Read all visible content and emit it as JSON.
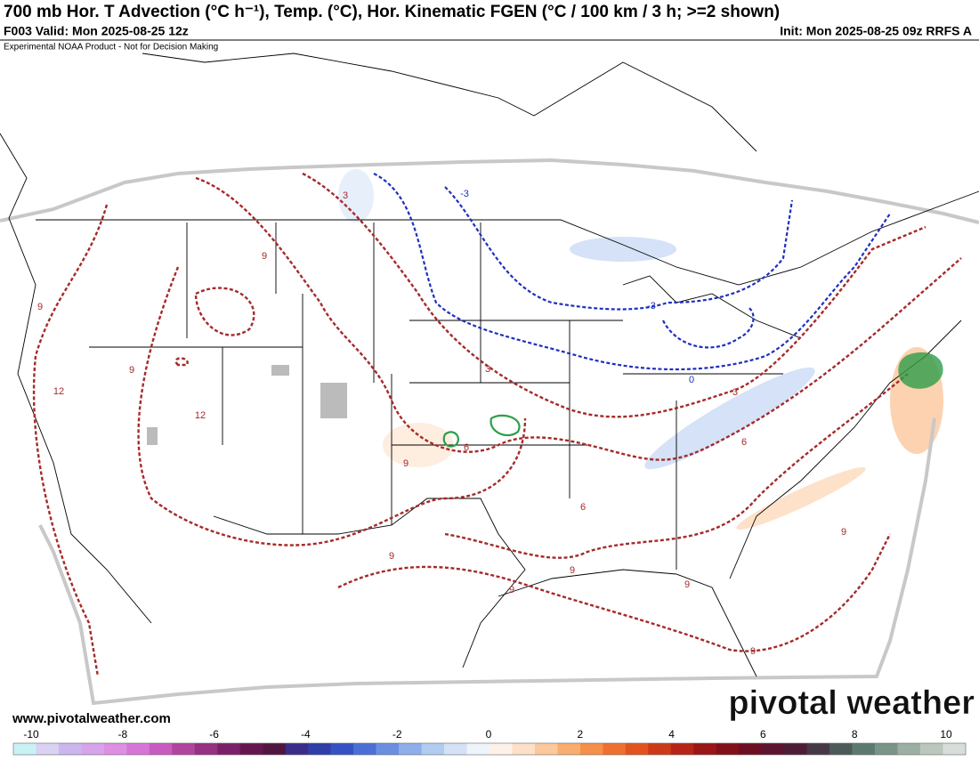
{
  "header": {
    "title": "700 mb Hor. T Advection (°C h⁻¹), Temp. (°C), Hor. Kinematic FGEN (°C / 100 km / 3 h; >=2 shown)",
    "valid": "F003 Valid: Mon 2025-08-25 12z",
    "init": "Init: Mon 2025-08-25 09z RRFS A",
    "disclaimer": "Experimental NOAA Product - Not for Decision Making"
  },
  "map": {
    "contour_labels": [
      {
        "text": "3",
        "kind": "temp"
      },
      {
        "text": "-3",
        "kind": "cold"
      },
      {
        "text": "9",
        "kind": "temp"
      },
      {
        "text": "9",
        "kind": "temp"
      },
      {
        "text": "9",
        "kind": "temp"
      },
      {
        "text": "12",
        "kind": "temp"
      },
      {
        "text": "12",
        "kind": "temp"
      },
      {
        "text": "9",
        "kind": "temp"
      },
      {
        "text": "6",
        "kind": "temp"
      },
      {
        "text": "3",
        "kind": "temp"
      },
      {
        "text": "-3",
        "kind": "cold"
      },
      {
        "text": "0",
        "kind": "cold"
      },
      {
        "text": "3",
        "kind": "temp"
      },
      {
        "text": "6",
        "kind": "temp"
      },
      {
        "text": "6",
        "kind": "temp"
      },
      {
        "text": "9",
        "kind": "temp"
      },
      {
        "text": "9",
        "kind": "temp"
      },
      {
        "text": "9",
        "kind": "temp"
      },
      {
        "text": "9",
        "kind": "temp"
      },
      {
        "text": "9",
        "kind": "temp"
      },
      {
        "text": "9",
        "kind": "temp"
      }
    ]
  },
  "footer": {
    "website": "www.pivotalweather.com",
    "logo": "pivotal weather"
  },
  "colorbar": {
    "ticks": [
      -10,
      -8,
      -6,
      -4,
      -2,
      0,
      2,
      4,
      6,
      8,
      10
    ],
    "colors": [
      "#c9f2f7",
      "#d9d2f2",
      "#cbb7ee",
      "#d6a4ea",
      "#dd8fe3",
      "#d775d6",
      "#c85bbf",
      "#b0449f",
      "#953083",
      "#7a2069",
      "#641651",
      "#51163f",
      "#3a2d8a",
      "#2f3ea8",
      "#3552c4",
      "#4b6fd6",
      "#6b8fe0",
      "#8eaee9",
      "#b2cbf1",
      "#d3e2f7",
      "#eef4fb",
      "#fdf2e9",
      "#fde0c7",
      "#fcc99c",
      "#f9ae6f",
      "#f5904a",
      "#ee7030",
      "#e2531f",
      "#cc3a19",
      "#b52417",
      "#9b1616",
      "#821018",
      "#6d0f22",
      "#5c1430",
      "#4d1d36",
      "#473848",
      "#4d5a5a",
      "#5d7a70",
      "#7b9488",
      "#9cafa3",
      "#bbc6bd",
      "#d7ddd8"
    ]
  }
}
